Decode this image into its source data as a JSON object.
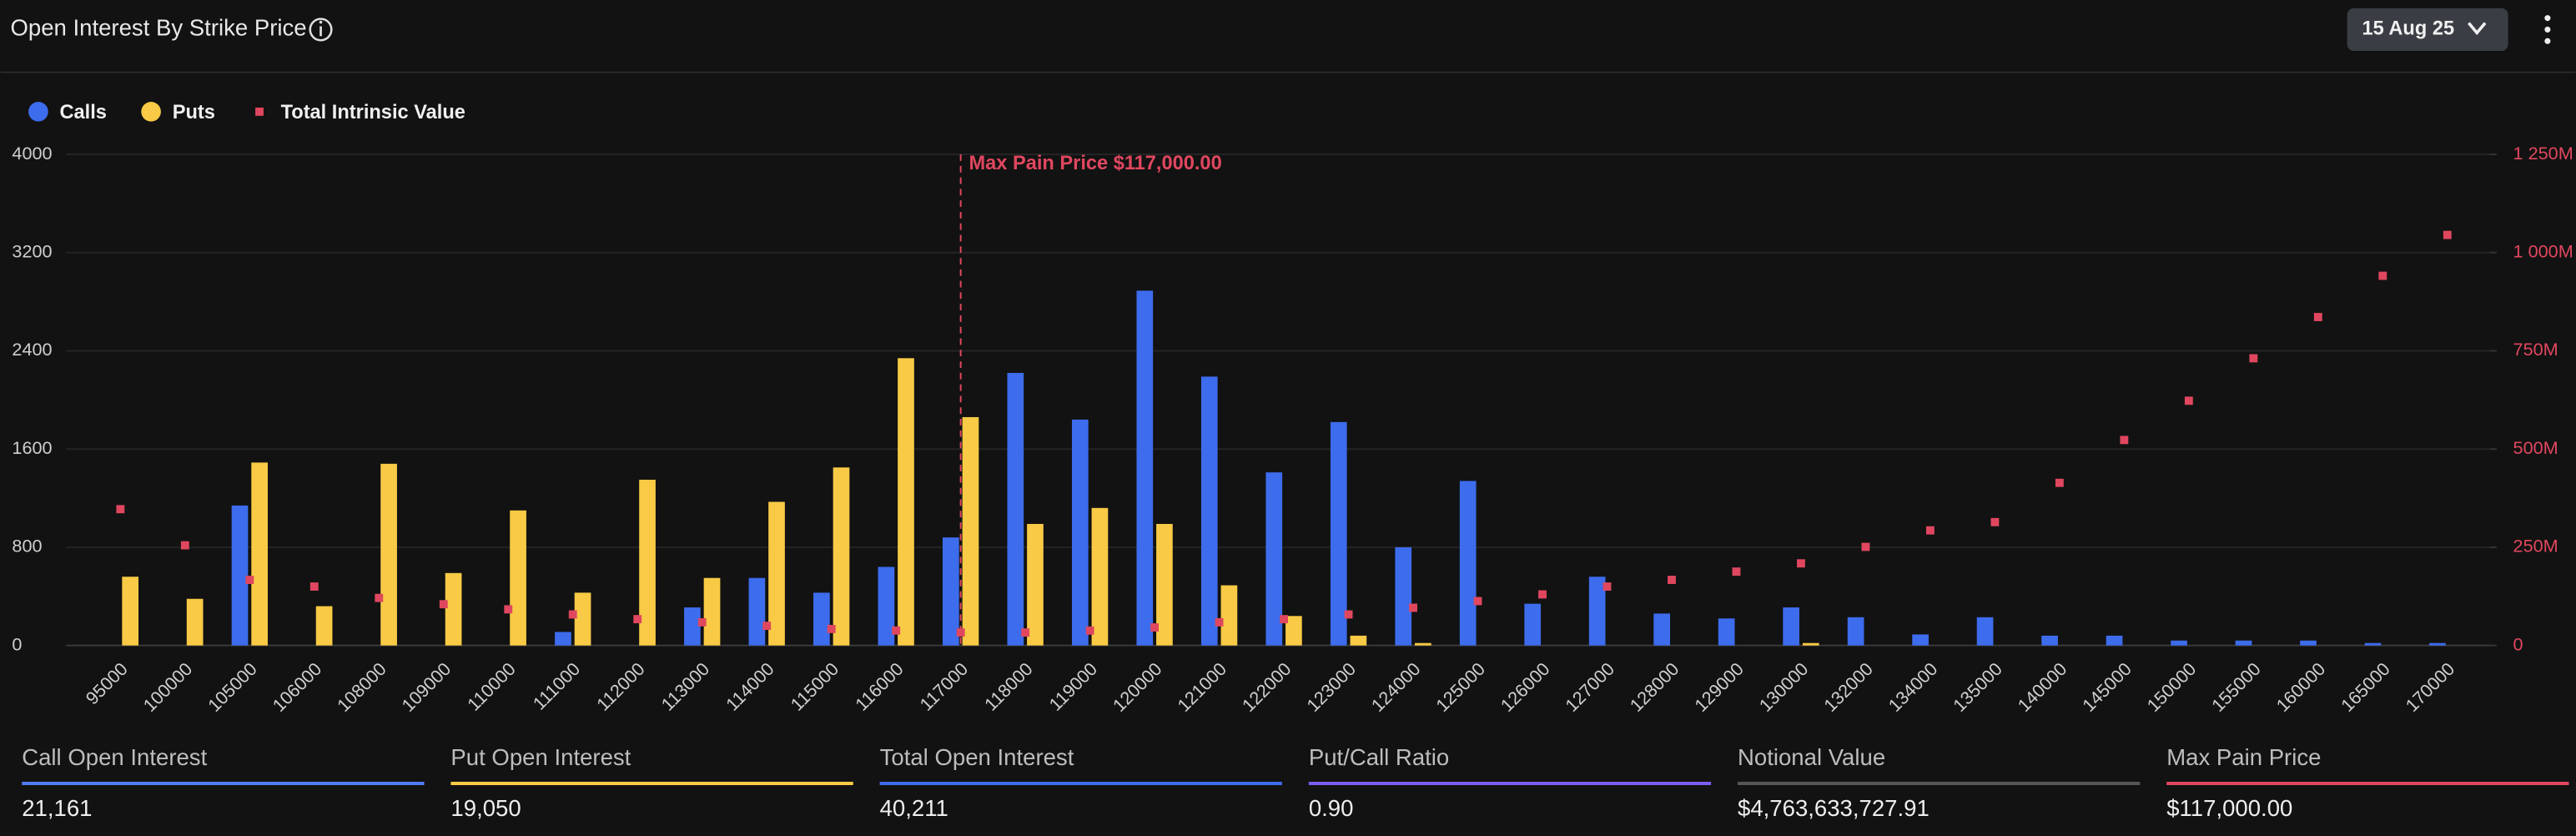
{
  "header": {
    "title": "Open Interest By Strike Price",
    "date_selector": "15 Aug 25"
  },
  "chart_data": {
    "type": "bar",
    "categories": [
      "95000",
      "100000",
      "105000",
      "106000",
      "108000",
      "109000",
      "110000",
      "111000",
      "112000",
      "113000",
      "114000",
      "115000",
      "116000",
      "117000",
      "118000",
      "119000",
      "120000",
      "121000",
      "122000",
      "123000",
      "124000",
      "125000",
      "126000",
      "127000",
      "128000",
      "129000",
      "130000",
      "132000",
      "134000",
      "135000",
      "140000",
      "145000",
      "150000",
      "155000",
      "160000",
      "165000",
      "170000"
    ],
    "series": [
      {
        "name": "Calls",
        "color": "#3d6cec",
        "type": "bar",
        "values": [
          0,
          0,
          1140,
          0,
          0,
          0,
          0,
          110,
          0,
          310,
          550,
          430,
          640,
          880,
          2220,
          1840,
          2890,
          2190,
          1410,
          1820,
          800,
          1340,
          340,
          560,
          260,
          220,
          310,
          230,
          90,
          230,
          80,
          80,
          40,
          40,
          40,
          20,
          20
        ]
      },
      {
        "name": "Puts",
        "color": "#f8ca45",
        "type": "bar",
        "values": [
          560,
          380,
          1490,
          320,
          1480,
          590,
          1100,
          430,
          1350,
          550,
          1170,
          1450,
          2340,
          1860,
          990,
          1120,
          990,
          490,
          240,
          80,
          20,
          0,
          0,
          0,
          0,
          0,
          20,
          0,
          0,
          0,
          0,
          0,
          0,
          0,
          0,
          0,
          0
        ]
      },
      {
        "name": "Total Intrinsic Value",
        "color": "#e0475f",
        "type": "scatter",
        "axis": "y2",
        "values": [
          347,
          255,
          167,
          150,
          121,
          105,
          92,
          79,
          67,
          59,
          50,
          42,
          38,
          33,
          33,
          38,
          46,
          59,
          67,
          79,
          96,
          113,
          130,
          150,
          167,
          188,
          209,
          251,
          293,
          314,
          414,
          523,
          623,
          731,
          836,
          941,
          1045
        ]
      }
    ],
    "ylim": [
      0,
      4000
    ],
    "yticks": [
      0,
      800,
      1600,
      2400,
      3200,
      4000
    ],
    "y2lim": [
      0,
      1250
    ],
    "y2ticks": [
      0,
      {
        "value": 250,
        "label": "250M"
      },
      {
        "value": 500,
        "label": "500M"
      },
      {
        "value": 750,
        "label": "750M"
      },
      {
        "value": 1000,
        "label": "1 000M"
      },
      {
        "value": 1250,
        "label": "1 250M"
      }
    ],
    "grid": true,
    "annotation": {
      "label": "Max Pain Price $117,000.00",
      "category": "117000",
      "color": "#e0475f"
    }
  },
  "stats": [
    {
      "label": "Call Open Interest",
      "value": "21,161",
      "color": "#4f7cf3"
    },
    {
      "label": "Put Open Interest",
      "value": "19,050",
      "color": "#f8ca45"
    },
    {
      "label": "Total Open Interest",
      "value": "40,211",
      "color": "#3d6cec"
    },
    {
      "label": "Put/Call Ratio",
      "value": "0.90",
      "color": "#7b5cf0"
    },
    {
      "label": "Notional Value",
      "value": "$4,763,633,727.91",
      "color": "#555555"
    },
    {
      "label": "Max Pain Price",
      "value": "$117,000.00",
      "color": "#e0475f"
    }
  ]
}
